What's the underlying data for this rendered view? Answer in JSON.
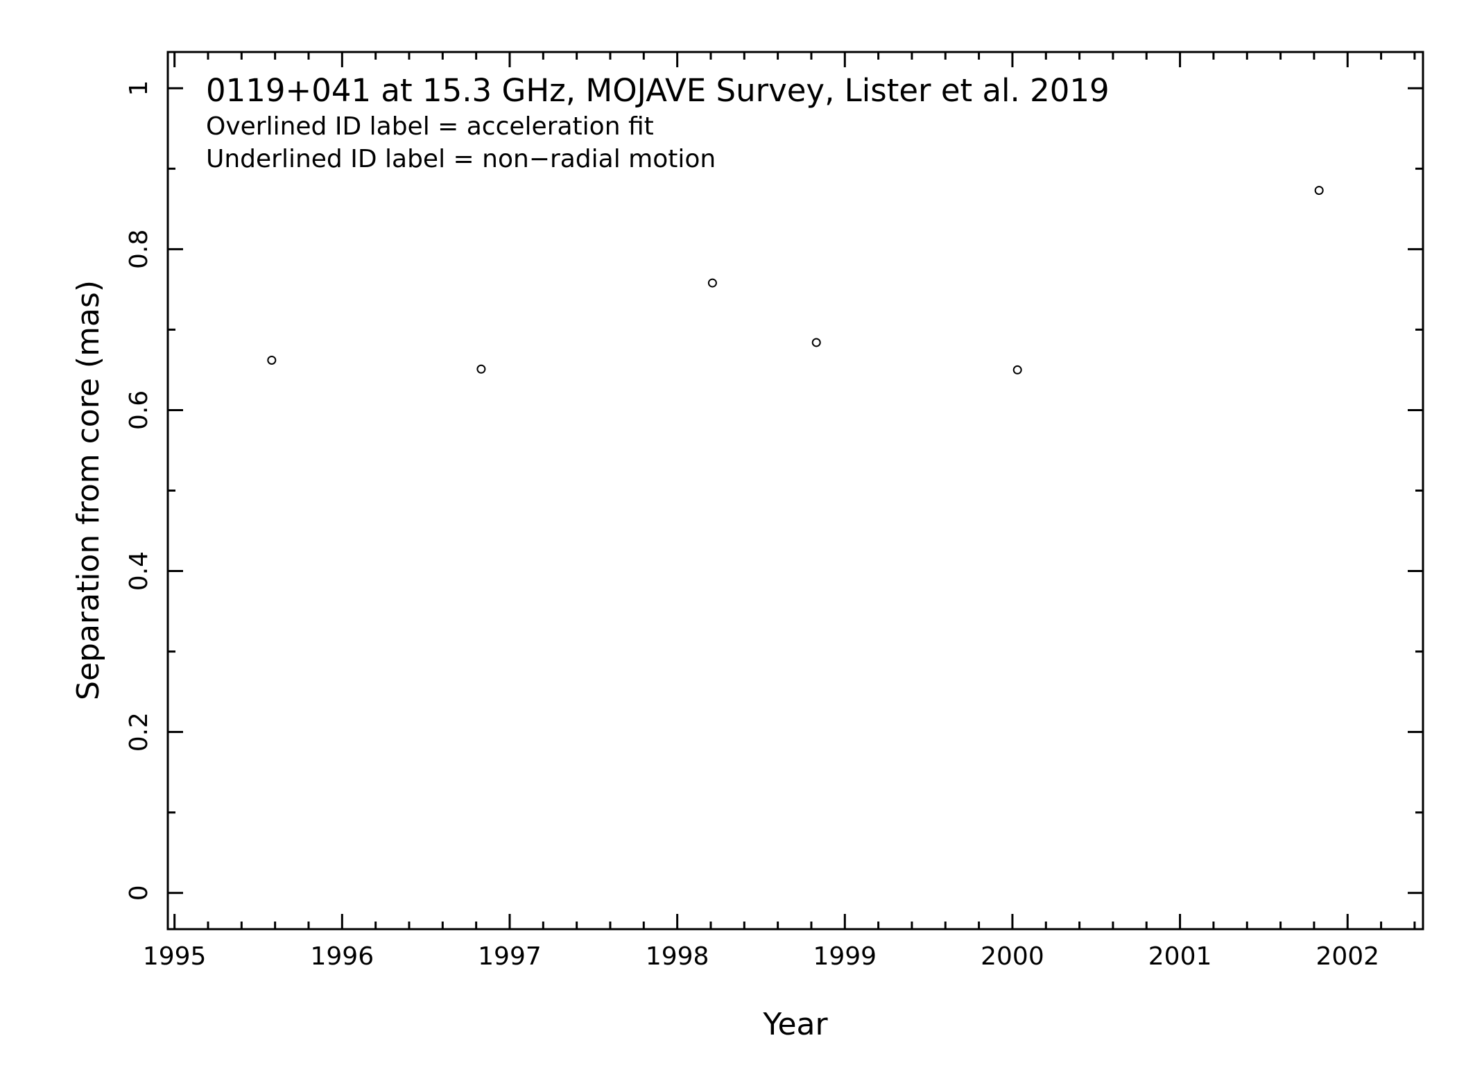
{
  "chart_data": {
    "type": "scatter",
    "title": "0119+041 at 15.3 GHz, MOJAVE Survey, Lister et al. 2019",
    "subtitle_lines": [
      "Overlined ID label = acceleration fit",
      "Underlined ID label = non−radial motion"
    ],
    "xlabel": "Year",
    "ylabel": "Separation from core (mas)",
    "xlim": [
      1994.96,
      2002.45
    ],
    "ylim": [
      -0.045,
      1.045
    ],
    "x_ticks": [
      1995,
      1996,
      1997,
      1998,
      1999,
      2000,
      2001,
      2002
    ],
    "x_tick_labels": [
      "1995",
      "1996",
      "1997",
      "1998",
      "1999",
      "2000",
      "2001",
      "2002"
    ],
    "y_ticks": [
      0,
      0.2,
      0.4,
      0.6,
      0.8,
      1
    ],
    "y_tick_labels": [
      "0",
      "0.2",
      "0.4",
      "0.6",
      "0.8",
      "1"
    ],
    "grid": false,
    "marker": "open-circle",
    "series": [
      {
        "points": [
          {
            "x": 1995.58,
            "y": 0.662
          },
          {
            "x": 1996.83,
            "y": 0.651
          },
          {
            "x": 1998.21,
            "y": 0.758
          },
          {
            "x": 1998.83,
            "y": 0.684
          },
          {
            "x": 2000.03,
            "y": 0.65
          },
          {
            "x": 2001.83,
            "y": 0.873
          }
        ]
      }
    ]
  }
}
